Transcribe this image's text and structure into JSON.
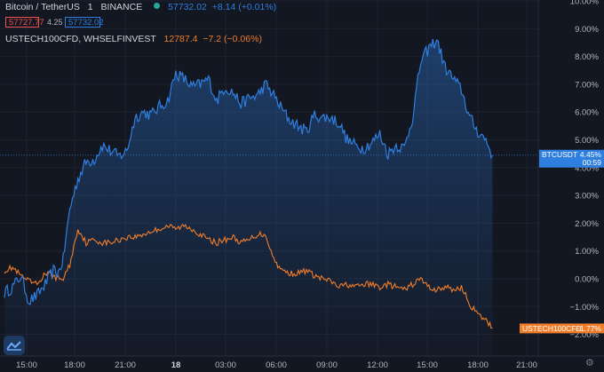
{
  "header": {
    "symbol": "Bitcoin / TetherUS",
    "interval": "1",
    "exchange": "BINANCE",
    "last_price": "57732.02",
    "change": "+8.14 (+0.01%)",
    "sell_price": "57727.77",
    "spread": "4.25",
    "buy_price": "57732.02",
    "compare_symbol": "USTECH100CFD, WHSELFINVEST",
    "compare_price": "12787.4",
    "compare_change": "−7.2 (−0.06%)"
  },
  "colors": {
    "background": "#131722",
    "btc": "#2f7fe0",
    "ustech": "#f07d2a",
    "grid": "#1e222d",
    "text": "#b2b5be"
  },
  "chart_data": {
    "type": "line",
    "x_ticks": [
      "15:00",
      "18:00",
      "21:00",
      "18",
      "03:00",
      "06:00",
      "09:00",
      "12:00",
      "15:00",
      "18:00",
      "21:00"
    ],
    "y_ticks": [
      "10.00%",
      "9.00%",
      "8.00%",
      "7.00%",
      "6.00%",
      "5.00%",
      "4.00%",
      "3.00%",
      "2.00%",
      "1.00%",
      "0.00%",
      "−1.00%",
      "−2.00%"
    ],
    "ylim": [
      -2.5,
      10.0
    ],
    "grid": true,
    "series": [
      {
        "name": "BTCUSDT",
        "label_value": "4.45%",
        "timer": "00:59",
        "x": [
          0,
          0.5,
          1,
          1.5,
          2,
          2.5,
          3,
          3.3,
          3.6,
          4,
          4.5,
          5,
          5.5,
          6,
          6.5,
          7,
          7.5,
          8,
          8.5,
          9,
          9.5,
          10,
          10.5,
          11,
          11.5,
          12,
          12.5,
          13,
          13.5,
          14,
          14.5,
          15,
          15.5,
          16,
          16.5,
          17,
          17.5,
          18,
          18.5,
          19,
          19.5,
          20,
          20.5,
          21,
          21.5,
          22,
          22.5,
          23,
          23.5,
          24,
          24.5,
          25,
          25.5,
          26,
          26.5,
          27,
          27.5,
          28,
          28.5,
          29,
          29.5,
          29.9
        ],
        "values": [
          -0.5,
          -0.3,
          0.1,
          -0.8,
          -0.6,
          -0.2,
          0.3,
          0.2,
          0.7,
          2.5,
          3.6,
          4.2,
          4.3,
          4.8,
          4.6,
          4.4,
          4.6,
          5.8,
          6.0,
          5.9,
          6.2,
          6.4,
          7.4,
          7.2,
          6.9,
          7.0,
          7.2,
          6.4,
          6.9,
          6.7,
          6.3,
          6.5,
          6.6,
          7.0,
          6.6,
          6.1,
          5.7,
          5.5,
          5.3,
          5.9,
          5.8,
          5.8,
          5.6,
          5.0,
          4.8,
          4.7,
          4.9,
          5.2,
          4.5,
          4.8,
          4.7,
          5.8,
          7.8,
          8.3,
          8.6,
          7.6,
          7.2,
          6.8,
          5.8,
          5.3,
          5.0,
          4.45
        ]
      },
      {
        "name": "USTECH100CFD",
        "label_value": "−1.77%",
        "x": [
          0,
          0.5,
          1,
          1.5,
          2,
          2.5,
          3,
          3.3,
          3.6,
          4,
          4.5,
          5,
          5.5,
          6,
          6.5,
          7,
          7.5,
          8,
          8.5,
          9,
          9.5,
          10,
          10.5,
          11,
          11.5,
          12,
          12.5,
          13,
          13.5,
          14,
          14.5,
          15,
          15.5,
          16,
          16.5,
          17,
          17.5,
          18,
          18.5,
          19,
          19.5,
          20,
          20.5,
          21,
          21.5,
          22,
          22.5,
          23,
          23.5,
          24,
          24.5,
          25,
          25.5,
          26,
          26.5,
          27,
          27.5,
          28,
          28.5,
          29,
          29.5,
          29.9
        ],
        "values": [
          0.3,
          0.4,
          0.1,
          -0.1,
          -0.2,
          0.2,
          0.1,
          0.0,
          0.0,
          0.5,
          1.8,
          1.3,
          1.4,
          1.3,
          1.3,
          1.4,
          1.5,
          1.5,
          1.6,
          1.7,
          1.8,
          1.9,
          1.8,
          1.9,
          1.8,
          1.6,
          1.4,
          1.3,
          1.4,
          1.5,
          1.3,
          1.4,
          1.6,
          1.6,
          0.7,
          0.3,
          0.2,
          0.2,
          0.3,
          0.1,
          0.0,
          -0.1,
          -0.3,
          -0.2,
          -0.3,
          -0.2,
          -0.2,
          -0.3,
          -0.2,
          -0.3,
          -0.4,
          -0.2,
          0.0,
          -0.3,
          -0.4,
          -0.3,
          -0.4,
          -0.3,
          -0.9,
          -1.3,
          -1.5,
          -1.77
        ]
      }
    ]
  }
}
